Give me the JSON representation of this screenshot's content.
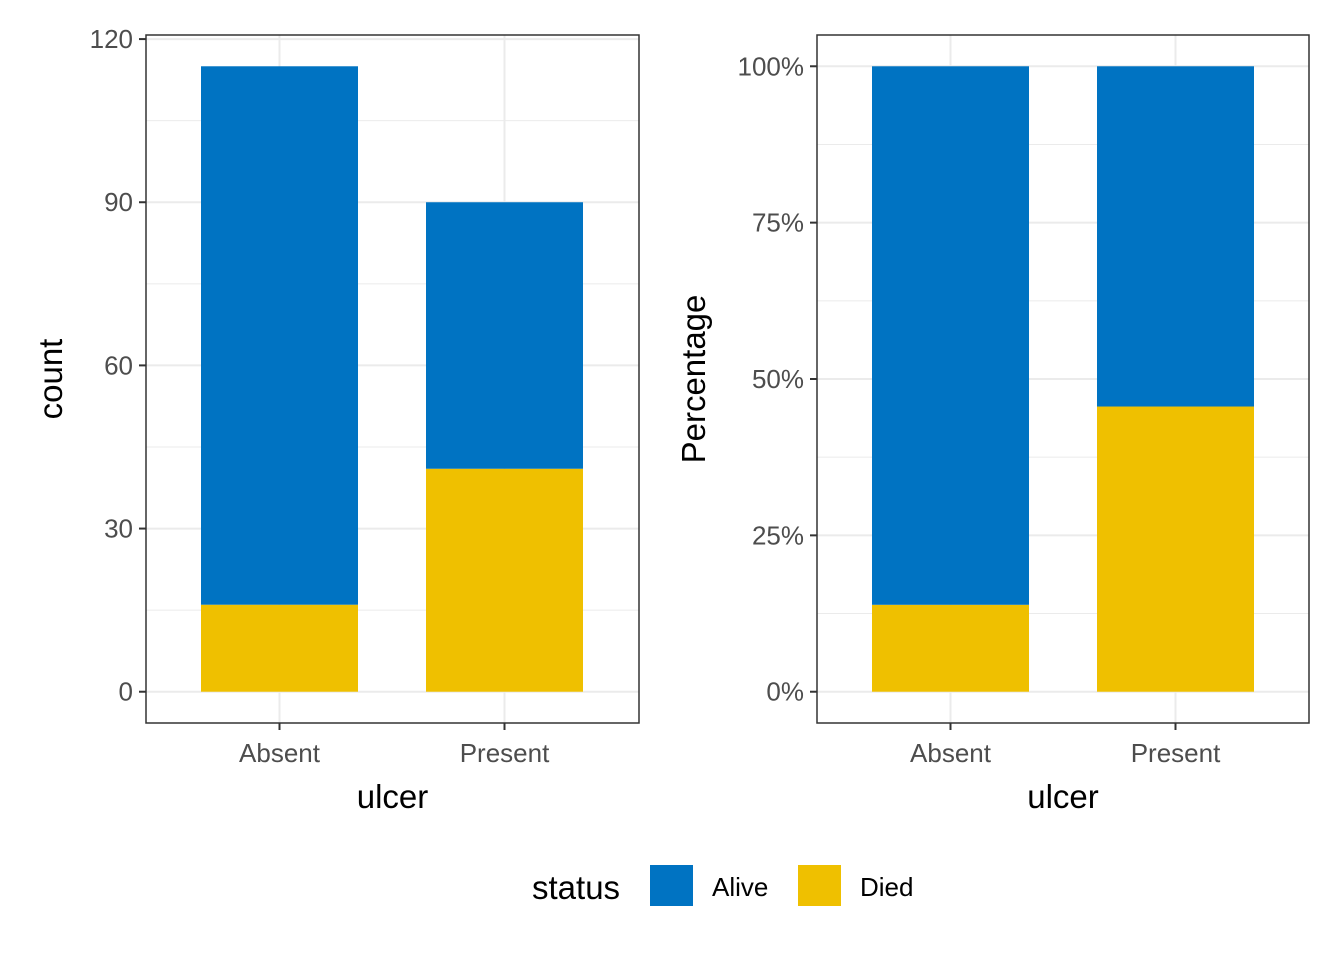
{
  "chart_data": [
    {
      "type": "bar",
      "stacked": true,
      "categories": [
        "Absent",
        "Present"
      ],
      "series": [
        {
          "name": "Died",
          "values": [
            16,
            41
          ],
          "color": "#EFC000"
        },
        {
          "name": "Alive",
          "values": [
            99,
            49
          ],
          "color": "#0073C2"
        }
      ],
      "xlabel": "ulcer",
      "ylabel": "count",
      "ylim": [
        -5.75,
        120.75
      ],
      "yticks": [
        0,
        30,
        60,
        90,
        120
      ],
      "ytick_labels": [
        "0",
        "30",
        "60",
        "90",
        "120"
      ],
      "grid": true
    },
    {
      "type": "bar",
      "stacked": true,
      "normalized": true,
      "categories": [
        "Absent",
        "Present"
      ],
      "series": [
        {
          "name": "Died",
          "values": [
            0.139,
            0.456
          ],
          "color": "#EFC000"
        },
        {
          "name": "Alive",
          "values": [
            0.861,
            0.544
          ],
          "color": "#0073C2"
        }
      ],
      "xlabel": "ulcer",
      "ylabel": "Percentage",
      "ylim": [
        -0.05,
        1.05
      ],
      "yticks": [
        0,
        0.25,
        0.5,
        0.75,
        1
      ],
      "ytick_labels": [
        "0%",
        "25%",
        "50%",
        "75%",
        "100%"
      ],
      "grid": true
    }
  ],
  "legend": {
    "title": "status",
    "placement": "bottom",
    "items": [
      {
        "label": "Alive",
        "color": "#0073C2"
      },
      {
        "label": "Died",
        "color": "#EFC000"
      }
    ]
  }
}
